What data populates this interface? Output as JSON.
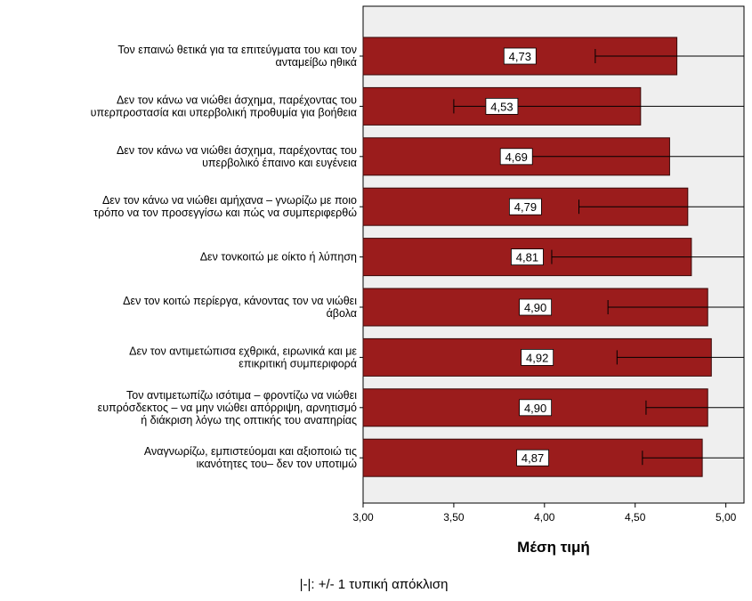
{
  "chart_data": {
    "type": "bar",
    "orientation": "horizontal",
    "categories": [
      [
        "Τον επαινώ θετικά για τα επιτεύγματα του και τον",
        "ανταμείβω ηθικά"
      ],
      [
        "Δεν τον κάνω να νιώθει άσχημα, παρέχοντας του",
        "υπερπροστασία και υπερβολική προθυμία για βοήθεια"
      ],
      [
        "Δεν τον κάνω να νιώθει άσχημα, παρέχοντας του",
        "υπερβολικό έπαινο και ευγένεια"
      ],
      [
        "Δεν τον κάνω να νιώθει αμήχανα – γνωρίζω με ποιο",
        "τρόπο να τον προσεγγίσω και πώς να συμπεριφερθώ"
      ],
      [
        "Δεν τονκοιτώ με οίκτο ή λύπηση"
      ],
      [
        "Δεν τον κοιτώ περίεργα, κάνοντας τον να νιώθει",
        "άβολα"
      ],
      [
        "Δεν τον αντιμετώπισα εχθρικά, ειρωνικά  και με",
        "επικριτική συμπεριφορά"
      ],
      [
        "Τον αντιμετωπίζω ισότιμα – φροντίζω να νιώθει",
        "ευπρόσδεκτος – να μην νιώθει απόρριψη, αρνητισμό",
        "ή διάκριση λόγω της οπτικής του αναπηρίας"
      ],
      [
        "Αναγνωρίζω, εμπιστεύομαι και αξιοποιώ τις",
        "ικανότητες του– δεν τον υποτιμώ"
      ]
    ],
    "values": [
      4.73,
      4.53,
      4.69,
      4.79,
      4.81,
      4.9,
      4.92,
      4.9,
      4.87
    ],
    "value_labels": [
      "4,73",
      "4,53",
      "4,69",
      "4,79",
      "4,81",
      "4,90",
      "4,92",
      "4,90",
      "4,87"
    ],
    "error_low": [
      4.28,
      3.5,
      3.92,
      4.19,
      4.04,
      4.35,
      4.4,
      4.56,
      4.54
    ],
    "error_high": [
      5.1,
      5.1,
      5.1,
      5.1,
      5.1,
      5.1,
      5.1,
      5.1,
      5.1
    ],
    "xlim": [
      3.0,
      5.1
    ],
    "xticks": [
      3.0,
      3.5,
      4.0,
      4.5,
      5.0
    ],
    "xtick_labels": [
      "3,00",
      "3,50",
      "4,00",
      "4,50",
      "5,00"
    ],
    "xlabel": "Μέση τιμή",
    "ylabel": "",
    "footnote": "|-|: +/- 1 τυπική απόκλιση",
    "bar_color": "#9b1c1c",
    "plot_background": "#efefef"
  }
}
